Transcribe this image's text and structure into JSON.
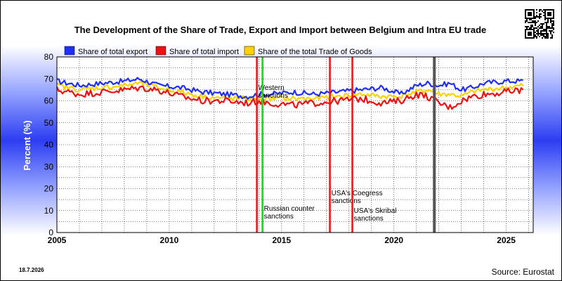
{
  "chart_data": {
    "type": "line",
    "title": "The Development of the Share of Trade, Export and Import between Belgium and Intra EU trade",
    "ylabel": "Percent (%)",
    "xlabel": "",
    "xlim": [
      2005,
      2026.2
    ],
    "ylim": [
      0,
      80
    ],
    "yticks": [
      "0",
      "10",
      "20",
      "30",
      "40",
      "50",
      "60",
      "70",
      "80"
    ],
    "xticks": [
      "2005",
      "2010",
      "2015",
      "2020",
      "2025"
    ],
    "grid": true,
    "legend_position": "top",
    "series": [
      {
        "name": "Share of total export",
        "color": "#1f2fff",
        "x": [
          2005.0,
          2006.0,
          2007.0,
          2008.0,
          2008.7,
          2009.5,
          2010.5,
          2011.5,
          2012.5,
          2013.5,
          2014.0,
          2014.5,
          2015.5,
          2016.5,
          2017.5,
          2018.5,
          2019.5,
          2020.3,
          2021.0,
          2021.5,
          2022.0,
          2022.5,
          2023.0,
          2023.5,
          2024.0,
          2025.0,
          2025.8
        ],
        "y": [
          69,
          67,
          68,
          69,
          70,
          67,
          66,
          64,
          63,
          62,
          63,
          63,
          64,
          63,
          64,
          65,
          66,
          63,
          67,
          68,
          67,
          68,
          65,
          66,
          68,
          69,
          69
        ]
      },
      {
        "name": "Share of total import",
        "color": "#ee1111",
        "x": [
          2005.0,
          2006.0,
          2007.0,
          2008.0,
          2008.7,
          2009.5,
          2010.5,
          2011.5,
          2012.5,
          2013.5,
          2014.0,
          2014.5,
          2015.5,
          2016.5,
          2017.5,
          2018.5,
          2019.5,
          2020.3,
          2021.0,
          2021.5,
          2022.0,
          2022.5,
          2023.0,
          2023.5,
          2024.0,
          2025.0,
          2025.8
        ],
        "y": [
          65,
          63,
          64,
          65,
          66,
          65,
          62,
          60,
          60,
          59,
          60,
          59,
          58,
          59,
          60,
          61,
          59,
          60,
          63,
          62,
          59,
          57,
          60,
          62,
          63,
          64,
          65
        ]
      },
      {
        "name": "Share of the total Trade of Goods",
        "color": "#ffd200",
        "x": [
          2005.0,
          2006.0,
          2007.0,
          2008.0,
          2008.7,
          2009.5,
          2010.5,
          2011.5,
          2012.5,
          2013.5,
          2014.0,
          2014.5,
          2015.5,
          2016.5,
          2017.5,
          2018.5,
          2019.5,
          2020.3,
          2021.0,
          2021.5,
          2022.0,
          2022.5,
          2023.0,
          2023.5,
          2024.0,
          2025.0,
          2025.8
        ],
        "y": [
          67,
          65,
          66,
          67,
          68,
          66,
          64,
          62,
          61,
          61,
          61,
          61,
          61,
          61,
          62,
          63,
          62,
          62,
          64,
          65,
          63,
          63,
          62,
          64,
          65,
          66,
          67
        ]
      }
    ],
    "events": [
      {
        "x": 2013.9,
        "color": "#ee1111",
        "label": [
          "Western",
          "sanctions"
        ],
        "label_y": 65
      },
      {
        "x": 2014.15,
        "color": "#22cc22",
        "label": [
          "Russian counter",
          "sanctions"
        ],
        "label_y": 10
      },
      {
        "x": 2017.15,
        "color": "#ee1111",
        "label": [
          "USA's Coegress",
          "sanctions"
        ],
        "label_y": 17
      },
      {
        "x": 2018.15,
        "color": "#ee1111",
        "label": [
          "USA's Skribal",
          "sanctions"
        ],
        "label_y": 9
      },
      {
        "x": 2021.8,
        "color": "#555555",
        "label": [],
        "label_y": 0
      }
    ]
  },
  "footer": {
    "date": "18.7.2026",
    "source": "Source: Eurostat"
  }
}
